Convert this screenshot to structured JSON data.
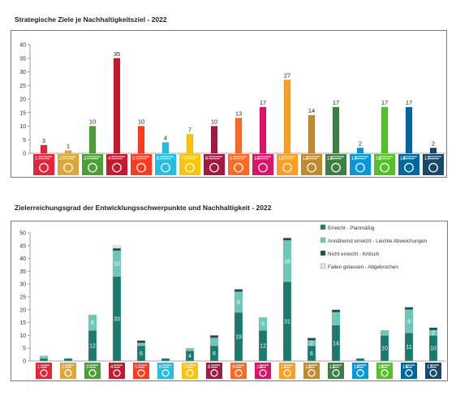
{
  "chart_data": [
    {
      "type": "bar",
      "title": "Strategische Ziele je Nachhaltigkeitsziel - 2022",
      "categories": [
        "1",
        "2",
        "3",
        "4",
        "5",
        "6",
        "7",
        "8",
        "9",
        "10",
        "11",
        "12",
        "13",
        "14",
        "15",
        "16",
        "17"
      ],
      "values": [
        3,
        1,
        10,
        35,
        10,
        4,
        7,
        10,
        13,
        17,
        27,
        14,
        17,
        2,
        17,
        17,
        2
      ],
      "ylim": [
        0,
        40
      ],
      "yticks": [
        0,
        5,
        10,
        15,
        20,
        25,
        30,
        35,
        40
      ],
      "grid": false,
      "bar_colors": [
        "#E5243B",
        "#DDA63A",
        "#4C9F38",
        "#C5192D",
        "#FF3A21",
        "#26BDE2",
        "#FCC30B",
        "#A21942",
        "#FD6925",
        "#DD1367",
        "#FD9D24",
        "#BF8B2E",
        "#3F7E44",
        "#0A97D9",
        "#56C02B",
        "#00689D",
        "#19486A"
      ]
    },
    {
      "type": "bar",
      "stacked": true,
      "title": "Zielerreichungsgrad der Entwicklungsschwerpunkte und Nachhaltigkeit - 2022",
      "categories": [
        "1",
        "2",
        "3",
        "4",
        "5",
        "6",
        "7",
        "8",
        "9",
        "10",
        "11",
        "12",
        "13",
        "14",
        "15",
        "16",
        "17"
      ],
      "series": [
        {
          "name": "Erreicht - Planmäßig",
          "values": [
            1,
            1,
            12,
            33,
            6,
            1,
            4,
            6,
            19,
            12,
            31,
            6,
            14,
            1,
            10,
            11,
            10
          ],
          "color": "#1a7a6d"
        },
        {
          "name": "Annähernd erreicht - Leichte Abweichungen",
          "values": [
            1,
            0,
            6,
            10,
            1,
            0,
            1,
            3,
            8,
            5,
            16,
            2,
            5,
            0,
            2,
            9,
            2
          ],
          "color": "#6cc8b8"
        },
        {
          "name": "Nicht erreicht - Kritisch",
          "values": [
            0,
            0,
            0,
            1,
            1,
            0,
            0,
            1,
            1,
            0,
            1,
            1,
            1,
            0,
            0,
            1,
            1
          ],
          "color": "#1d4d45"
        },
        {
          "name": "Fallen gelassen - Abgebrochen",
          "values": [
            0,
            0,
            0,
            1,
            0,
            0,
            0,
            0,
            0,
            0,
            0,
            0,
            0,
            0,
            0,
            0,
            0
          ],
          "color": "#d9e9e6"
        }
      ],
      "labeled_segments": [
        {
          "category": 3,
          "series": 0,
          "text": "12"
        },
        {
          "category": 3,
          "series": 1,
          "text": "6"
        },
        {
          "category": 4,
          "series": 0,
          "text": "33"
        },
        {
          "category": 4,
          "series": 1,
          "text": "10"
        },
        {
          "category": 5,
          "series": 0,
          "text": "6"
        },
        {
          "category": 7,
          "series": 0,
          "text": "4"
        },
        {
          "category": 8,
          "series": 0,
          "text": "6"
        },
        {
          "category": 9,
          "series": 0,
          "text": "19"
        },
        {
          "category": 9,
          "series": 1,
          "text": "8"
        },
        {
          "category": 10,
          "series": 0,
          "text": "12"
        },
        {
          "category": 10,
          "series": 1,
          "text": "5"
        },
        {
          "category": 11,
          "series": 0,
          "text": "31"
        },
        {
          "category": 11,
          "series": 1,
          "text": "16"
        },
        {
          "category": 12,
          "series": 0,
          "text": "6"
        },
        {
          "category": 12,
          "series": 1,
          "text": "2"
        },
        {
          "category": 13,
          "series": 0,
          "text": "14"
        },
        {
          "category": 15,
          "series": 0,
          "text": "10"
        },
        {
          "category": 16,
          "series": 0,
          "text": "11"
        },
        {
          "category": 16,
          "series": 1,
          "text": "9"
        },
        {
          "category": 17,
          "series": 0,
          "text": "10"
        },
        {
          "category": 17,
          "series": 1,
          "text": "2"
        }
      ],
      "ylim": [
        0,
        50
      ],
      "yticks": [
        0,
        5,
        10,
        15,
        20,
        25,
        30,
        35,
        40,
        45,
        50
      ],
      "legend_position": "top-right",
      "grid": false
    }
  ],
  "sdg_icons": {
    "colors": [
      "#E5243B",
      "#DDA63A",
      "#4C9F38",
      "#C5192D",
      "#FF3A21",
      "#26BDE2",
      "#FCC30B",
      "#A21942",
      "#FD6925",
      "#DD1367",
      "#FD9D24",
      "#BF8B2E",
      "#3F7E44",
      "#0A97D9",
      "#56C02B",
      "#00689D",
      "#19486A"
    ],
    "numbers": [
      "1",
      "2",
      "3",
      "4",
      "5",
      "6",
      "7",
      "8",
      "9",
      "10",
      "11",
      "12",
      "13",
      "14",
      "15",
      "16",
      "17"
    ]
  }
}
